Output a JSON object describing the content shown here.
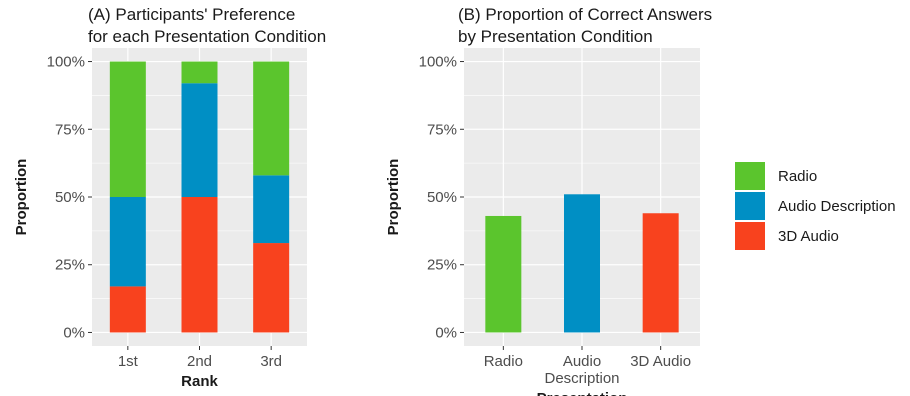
{
  "chart_data": [
    {
      "type": "bar",
      "stacked": true,
      "title": [
        "(A) Participants' Preference",
        "for each Presentation Condition"
      ],
      "xlabel": "Rank",
      "ylabel": "Proportion",
      "categories": [
        "1st",
        "2nd",
        "3rd"
      ],
      "yticks": [
        "0%",
        "25%",
        "50%",
        "75%",
        "100%"
      ],
      "ylim": [
        0,
        1
      ],
      "grid": true,
      "series": [
        {
          "name": "3D Audio",
          "color": "#f8421e",
          "values": [
            0.17,
            0.5,
            0.33
          ]
        },
        {
          "name": "Audio Description",
          "color": "#008fc4",
          "values": [
            0.33,
            0.42,
            0.25
          ]
        },
        {
          "name": "Radio",
          "color": "#5bc52d",
          "values": [
            0.5,
            0.08,
            0.42
          ]
        }
      ]
    },
    {
      "type": "bar",
      "title": [
        "(B) Proportion of Correct Answers",
        "by Presentation Condition"
      ],
      "xlabel": "Presentation",
      "ylabel": "Proportion",
      "categories": [
        [
          "Radio"
        ],
        [
          "Audio",
          "Description"
        ],
        [
          "3D Audio"
        ]
      ],
      "yticks": [
        "0%",
        "25%",
        "50%",
        "75%",
        "100%"
      ],
      "ylim": [
        0,
        1
      ],
      "grid": true,
      "values": [
        0.43,
        0.51,
        0.44
      ],
      "colors": [
        "#5bc52d",
        "#008fc4",
        "#f8421e"
      ]
    }
  ],
  "legend": {
    "position": "right",
    "items": [
      {
        "label": "Radio",
        "color": "#5bc52d"
      },
      {
        "label": "Audio Description",
        "color": "#008fc4"
      },
      {
        "label": "3D Audio",
        "color": "#f8421e"
      }
    ]
  }
}
